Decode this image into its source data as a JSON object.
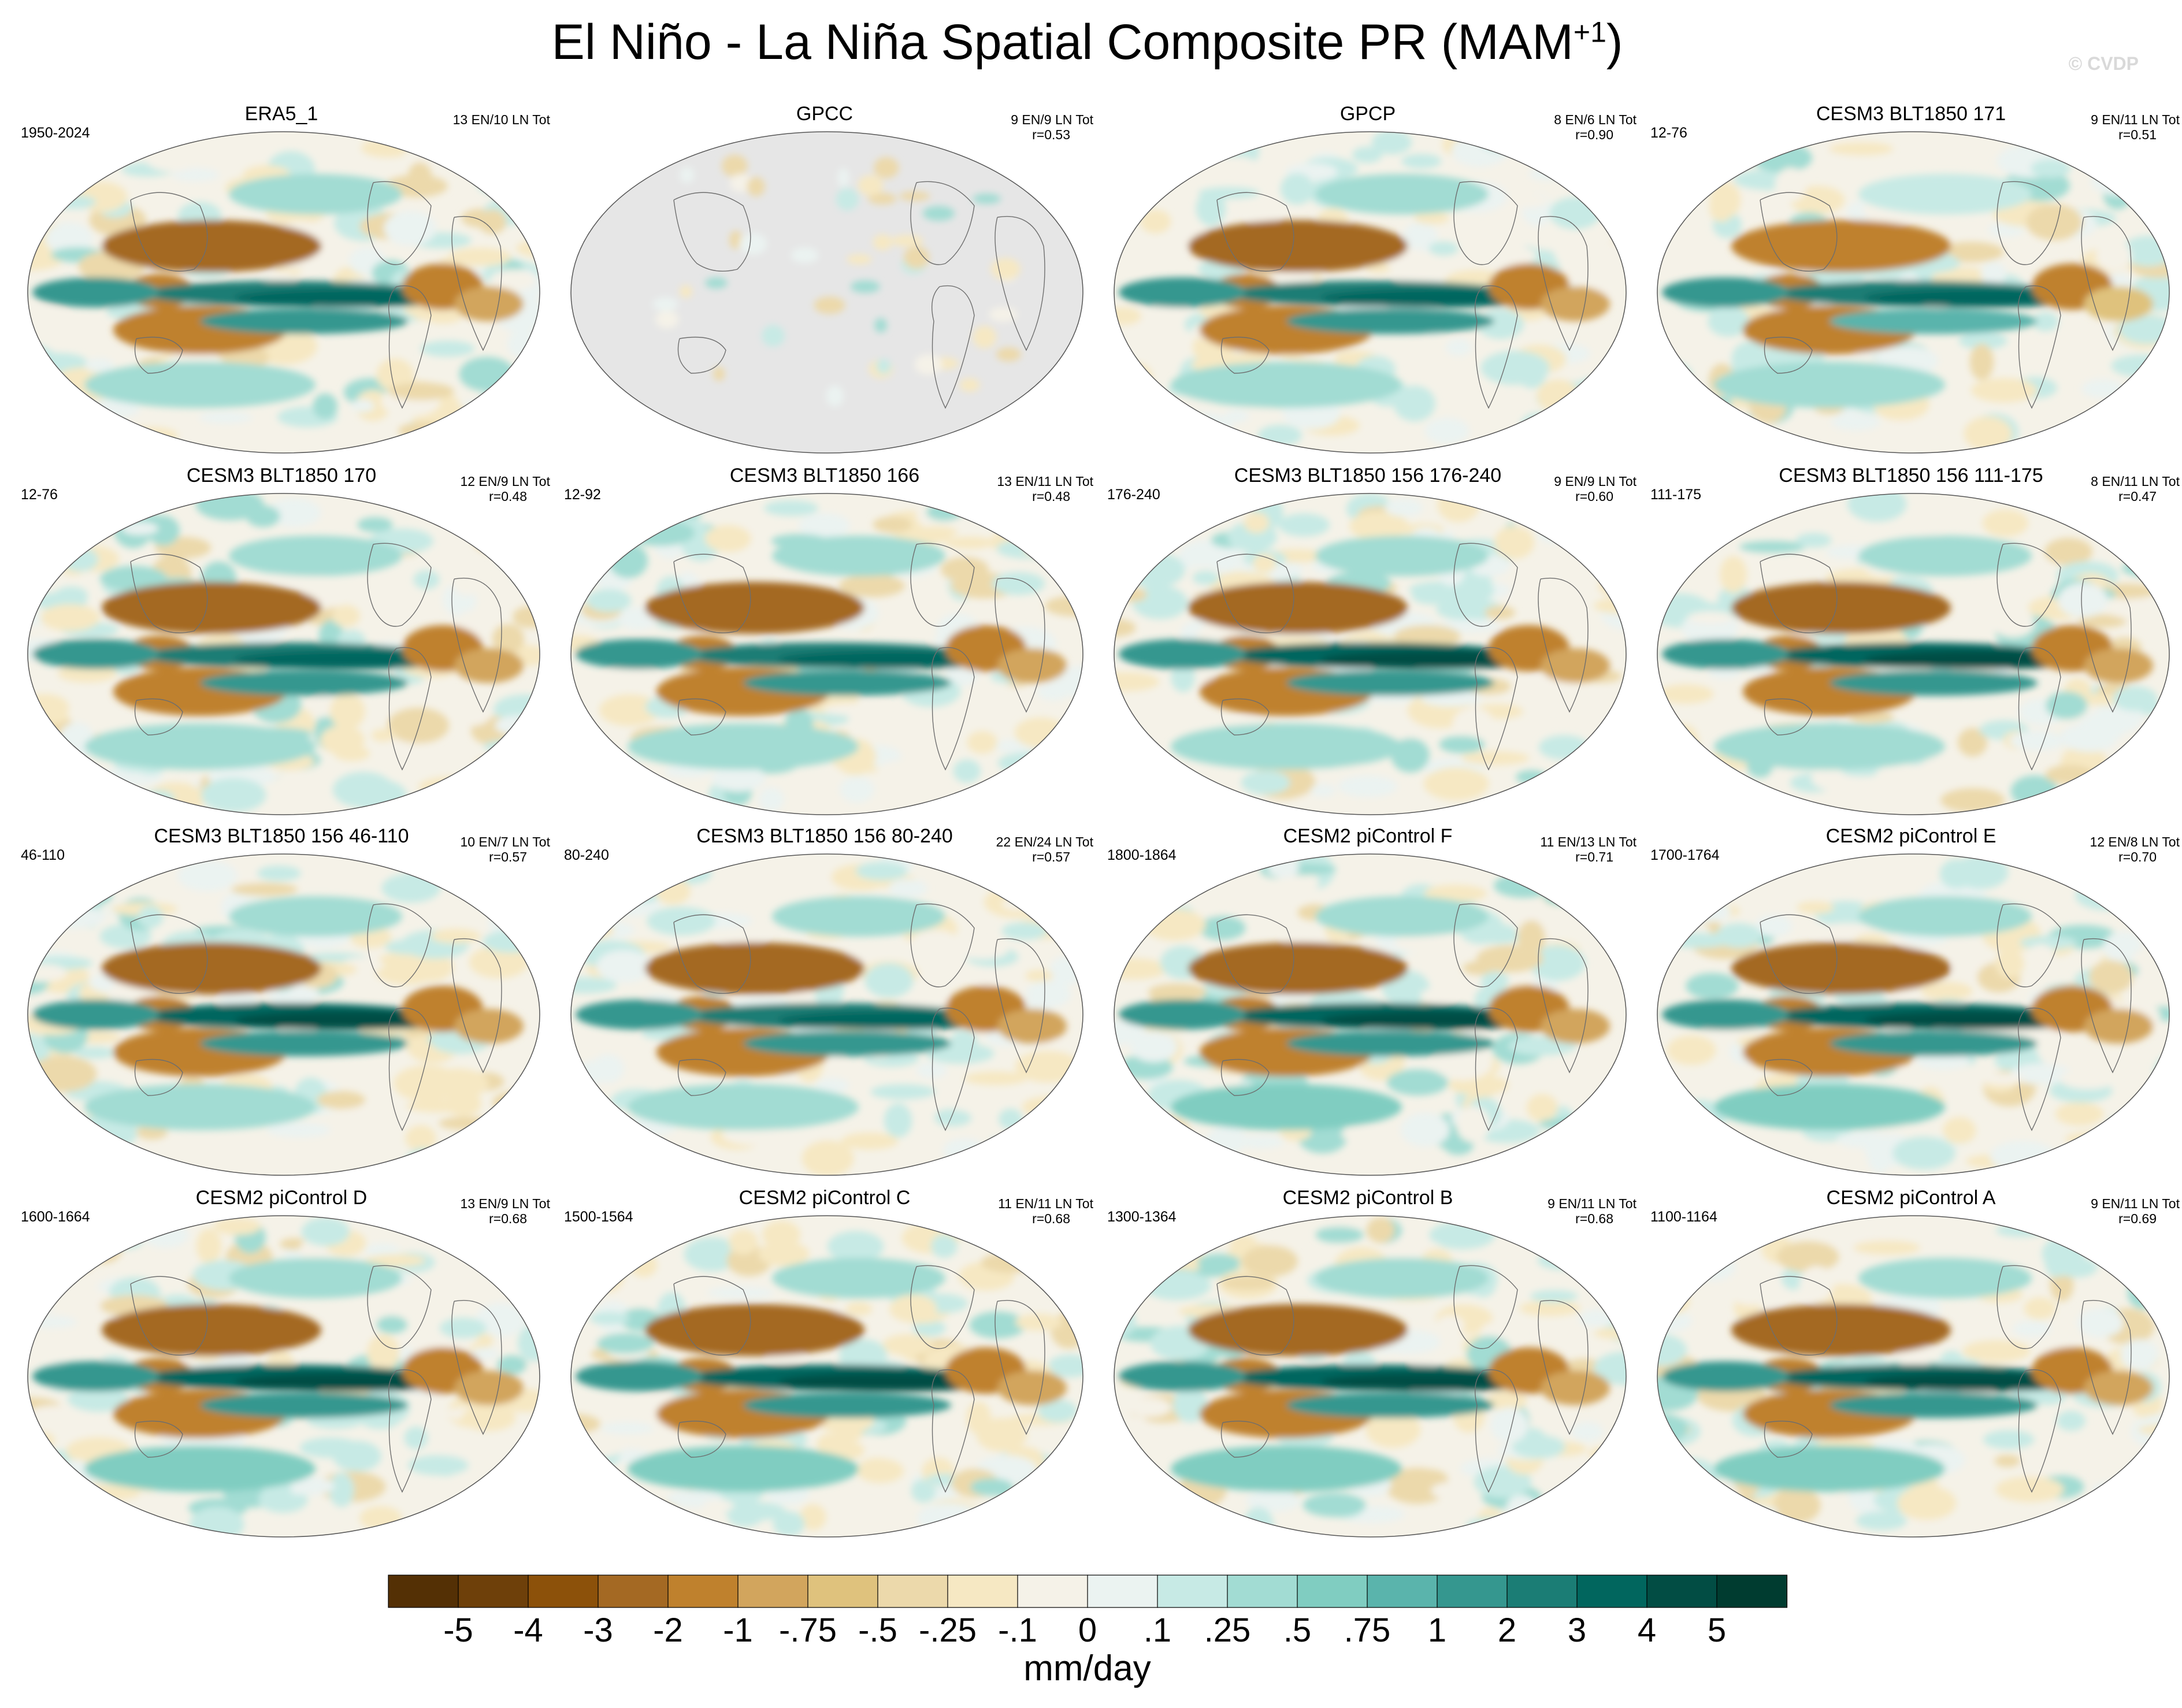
{
  "header": {
    "title": "El Niño - La Niña Spatial Composite PR (MAM",
    "title_sup": "+1",
    "title_close": ")",
    "watermark": "© CVDP"
  },
  "chart_data": {
    "type": "heatmap",
    "title": "El Niño - La Niña Spatial Composite PR (MAM+1)",
    "projection": "Robinson-like global, Pacific-centered",
    "colormap": "brown-white-teal diverging",
    "units": "mm/day",
    "colorbar": {
      "levels": [
        "-5",
        "-4",
        "-3",
        "-2",
        "-1",
        "-.75",
        "-.5",
        "-.25",
        "-.1",
        "0",
        ".1",
        ".25",
        ".5",
        ".75",
        "1",
        "2",
        "3",
        "4",
        "5"
      ],
      "colors": [
        "#543005",
        "#6e400a",
        "#8c510a",
        "#a46923",
        "#bf812d",
        "#d2a55d",
        "#dfc27d",
        "#ecd9ab",
        "#f6e8c3",
        "#f5f2e8",
        "#ebf3f1",
        "#c7eae5",
        "#a2dcd3",
        "#80cdc1",
        "#5ab4ac",
        "#35978f",
        "#1b7d75",
        "#01665e",
        "#024d44",
        "#003c30"
      ]
    },
    "panels": [
      {
        "name": "ERA5_1",
        "years": "1950-2024",
        "counts": "13 EN/10 LN Tot",
        "r": "",
        "intensity": 0.85,
        "noise": 0.45
      },
      {
        "name": "GPCC",
        "years": "",
        "counts": "9 EN/9 LN Tot",
        "r": "r=0.53",
        "intensity": 0.6,
        "noise": 0.5,
        "land_only": true
      },
      {
        "name": "GPCP",
        "years": "",
        "counts": "8 EN/6 LN Tot",
        "r": "r=0.90",
        "intensity": 0.85,
        "noise": 0.35
      },
      {
        "name": "CESM3 BLT1850 171",
        "years": "12-76",
        "counts": "9 EN/11 LN Tot",
        "r": "r=0.51",
        "intensity": 0.75,
        "noise": 0.5
      },
      {
        "name": "CESM3 BLT1850 170",
        "years": "12-76",
        "counts": "12 EN/9 LN Tot",
        "r": "r=0.48",
        "intensity": 0.85,
        "noise": 0.5
      },
      {
        "name": "CESM3 BLT1850 166",
        "years": "12-92",
        "counts": "13 EN/11 LN Tot",
        "r": "r=0.48",
        "intensity": 0.85,
        "noise": 0.5
      },
      {
        "name": "CESM3 BLT1850 156 176-240",
        "years": "176-240",
        "counts": "9 EN/9 LN Tot",
        "r": "r=0.60",
        "intensity": 0.9,
        "noise": 0.45
      },
      {
        "name": "CESM3 BLT1850 156 111-175",
        "years": "111-175",
        "counts": "8 EN/11 LN Tot",
        "r": "r=0.47",
        "intensity": 0.9,
        "noise": 0.45
      },
      {
        "name": "CESM3 BLT1850 156 46-110",
        "years": "46-110",
        "counts": "10 EN/7 LN Tot",
        "r": "r=0.57",
        "intensity": 0.9,
        "noise": 0.45
      },
      {
        "name": "CESM3 BLT1850 156 80-240",
        "years": "80-240",
        "counts": "22 EN/24 LN Tot",
        "r": "r=0.57",
        "intensity": 0.85,
        "noise": 0.35
      },
      {
        "name": "CESM2 piControl F",
        "years": "1800-1864",
        "counts": "11 EN/13 LN Tot",
        "r": "r=0.71",
        "intensity": 1.0,
        "noise": 0.4
      },
      {
        "name": "CESM2 piControl E",
        "years": "1700-1764",
        "counts": "12 EN/8 LN Tot",
        "r": "r=0.70",
        "intensity": 1.0,
        "noise": 0.4
      },
      {
        "name": "CESM2 piControl D",
        "years": "1600-1664",
        "counts": "13 EN/9 LN Tot",
        "r": "r=0.68",
        "intensity": 1.0,
        "noise": 0.4
      },
      {
        "name": "CESM2 piControl C",
        "years": "1500-1564",
        "counts": "11 EN/11 LN Tot",
        "r": "r=0.68",
        "intensity": 1.0,
        "noise": 0.4
      },
      {
        "name": "CESM2 piControl B",
        "years": "1300-1364",
        "counts": "9 EN/11 LN Tot",
        "r": "r=0.68",
        "intensity": 1.0,
        "noise": 0.4
      },
      {
        "name": "CESM2 piControl A",
        "years": "1100-1164",
        "counts": "9 EN/11 LN Tot",
        "r": "r=0.69",
        "intensity": 1.0,
        "noise": 0.4
      }
    ]
  }
}
